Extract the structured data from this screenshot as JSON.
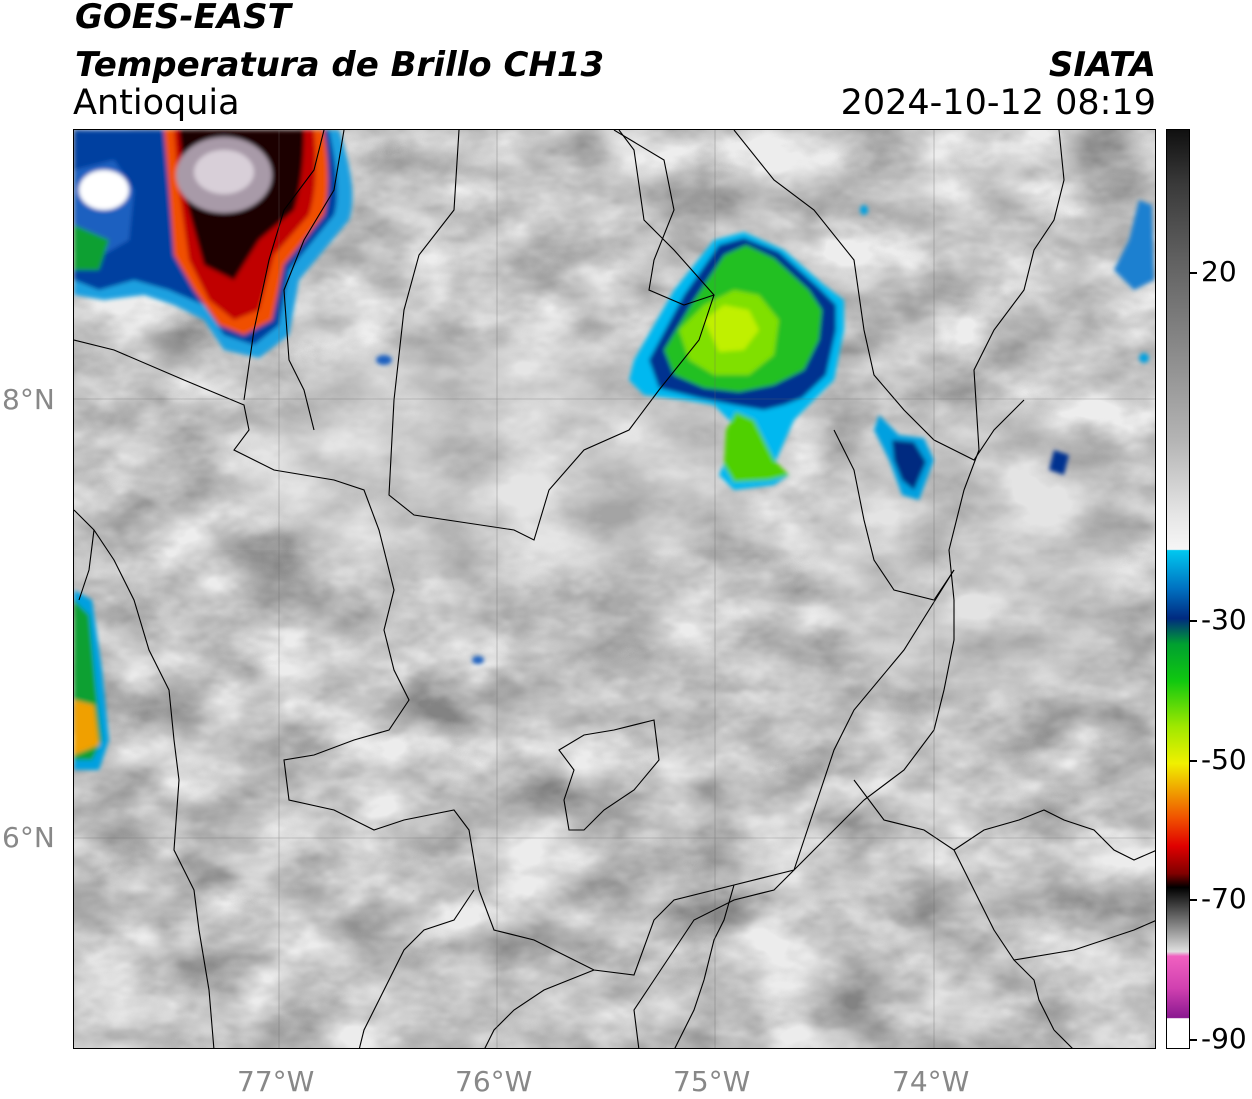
{
  "header": {
    "satellite": "GOES-EAST",
    "product": "Temperatura de Brillo CH13",
    "region": "Antioquia",
    "source": "SIATA",
    "datetime": "2024-10-12 08:19"
  },
  "axes": {
    "lon_labels": [
      "77°W",
      "76°W",
      "75°W",
      "74°W"
    ],
    "lat_labels": [
      "8°N",
      "6°N"
    ]
  },
  "colorbar": {
    "tick_labels": [
      "20",
      "-30",
      "-50",
      "-70",
      "-90"
    ],
    "colors": {
      "warm": "#8a8a8a",
      "cold_blue": "#0070c0",
      "green": "#10c810",
      "yellow": "#f0f000",
      "red": "#e00000"
    }
  }
}
